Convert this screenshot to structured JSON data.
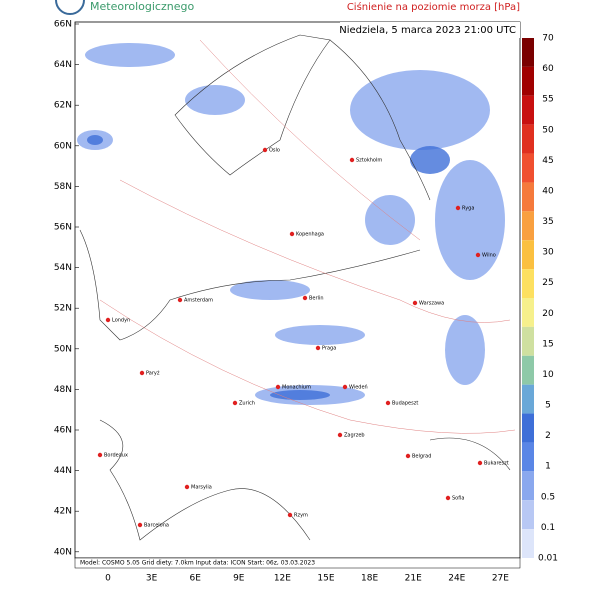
{
  "header": {
    "institute": "Meteorologicznego",
    "title": "Ciśnienie na poziomie morza [hPa]",
    "date": "Niedziela, 5 marca 2023 21:00 UTC"
  },
  "map": {
    "lat_labels": [
      "66N",
      "64N",
      "62N",
      "60N",
      "58N",
      "56N",
      "54N",
      "52N",
      "50N",
      "48N",
      "46N",
      "44N",
      "42N",
      "40N"
    ],
    "lon_labels": [
      "0",
      "3E",
      "6E",
      "9E",
      "12E",
      "15E",
      "18E",
      "21E",
      "24E",
      "27E"
    ],
    "cities": [
      "Oslo",
      "Sztokholm",
      "Ryga",
      "Wilno",
      "Kopenhaga",
      "Amsterdam",
      "Berlin",
      "Warszawa",
      "Londyn",
      "Praga",
      "Paryż",
      "Monachium",
      "Wiedeń",
      "Zurich",
      "Budapeszt",
      "Zagrzeb",
      "Bordeaux",
      "Belgrad",
      "Bukareszt",
      "Marsylia",
      "Sofia",
      "Rzym",
      "Barcelona"
    ]
  },
  "colorbar": [
    {
      "label": "70",
      "color": "#7a0000"
    },
    {
      "label": "60",
      "color": "#a00000"
    },
    {
      "label": "55",
      "color": "#c81010"
    },
    {
      "label": "50",
      "color": "#e03020"
    },
    {
      "label": "45",
      "color": "#f05030"
    },
    {
      "label": "40",
      "color": "#f57a3c"
    },
    {
      "label": "35",
      "color": "#f9a040"
    },
    {
      "label": "30",
      "color": "#fbc040"
    },
    {
      "label": "25",
      "color": "#fde060"
    },
    {
      "label": "20",
      "color": "#f6f08c"
    },
    {
      "label": "15",
      "color": "#cfe0a0"
    },
    {
      "label": "10",
      "color": "#8ec9a8"
    },
    {
      "label": "5",
      "color": "#6aa8d8"
    },
    {
      "label": "2",
      "color": "#3e6fd8"
    },
    {
      "label": "1",
      "color": "#5a86e6"
    },
    {
      "label": "0.5",
      "color": "#8aa8ee"
    },
    {
      "label": "0.1",
      "color": "#b8c8f4"
    },
    {
      "label": "0.01",
      "color": "#dde5fa"
    }
  ],
  "footer": "Model: COSMO 5.05  Grid diety: 7.0km  Input data: ICON  Start: 06z, 03.03.2023"
}
